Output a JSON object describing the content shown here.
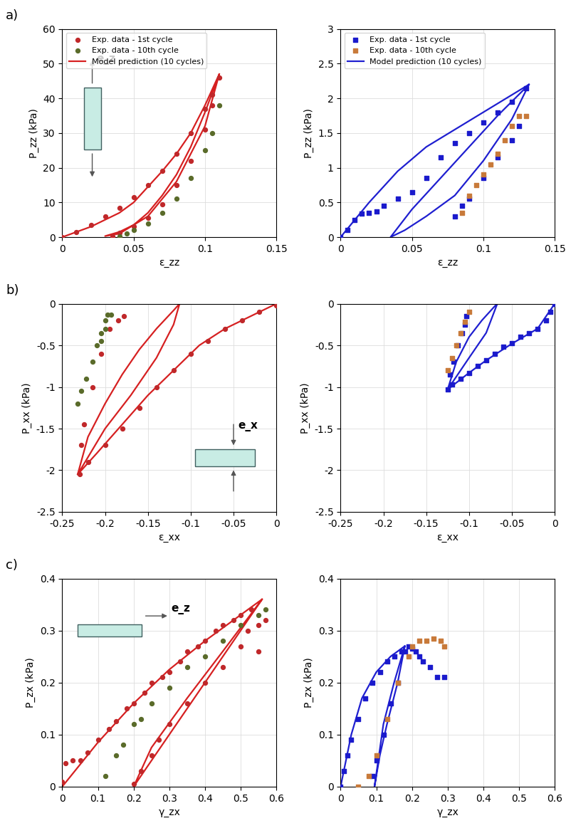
{
  "chart_data": [
    {
      "type": "scatter",
      "x_label": "ε_zz",
      "y_label": "P_zz (kPa)",
      "xlim": [
        0,
        0.15
      ],
      "xticks": [
        0,
        0.05,
        0.1,
        0.15
      ],
      "ylim": [
        0,
        60
      ],
      "yticks": [
        0,
        10,
        20,
        30,
        40,
        50,
        60
      ],
      "grid": true,
      "legend": "upper left",
      "annotations": [
        "a)",
        "e_z"
      ],
      "series": [
        {
          "name": "Exp. data - 1st cycle",
          "type": "scatter",
          "marker": "o",
          "color": "#c0282a",
          "x": [
            0,
            0.01,
            0.02,
            0.03,
            0.04,
            0.05,
            0.06,
            0.07,
            0.08,
            0.09,
            0.1,
            0.105,
            0.11,
            0.105,
            0.1,
            0.09,
            0.08,
            0.07,
            0.06,
            0.05,
            0.04,
            0.035
          ],
          "values": [
            0,
            1.5,
            3.5,
            6,
            8.5,
            11.5,
            15,
            19,
            24,
            30,
            37,
            41,
            46,
            38,
            31,
            22,
            15,
            9.5,
            5.5,
            3,
            1.2,
            0.3
          ]
        },
        {
          "name": "Exp. data - 10th cycle",
          "type": "scatter",
          "marker": "o",
          "color": "#5a6b2a",
          "x": [
            0.04,
            0.045,
            0.05,
            0.06,
            0.07,
            0.08,
            0.09,
            0.1,
            0.105,
            0.11
          ],
          "values": [
            0.3,
            1,
            2,
            4,
            7,
            11,
            17,
            25,
            30,
            38
          ]
        },
        {
          "name": "Model prediction (10 cycles)",
          "type": "line",
          "line_style": "solid",
          "color": "#d62021",
          "x": [
            0,
            0.02,
            0.04,
            0.05,
            0.06,
            0.07,
            0.08,
            0.09,
            0.1,
            0.11,
            0.1,
            0.09,
            0.08,
            0.07,
            0.06,
            0.05,
            0.04,
            0.03,
            0.04,
            0.06,
            0.08,
            0.1,
            0.11
          ],
          "values": [
            0,
            3,
            7,
            10,
            14.5,
            19,
            24,
            30,
            38,
            47,
            36,
            26,
            18,
            12,
            7,
            3.5,
            1.5,
            0.3,
            1,
            6,
            16,
            32,
            47
          ]
        }
      ]
    },
    {
      "type": "scatter",
      "x_label": "ε_zz",
      "y_label": "P_zz (kPa)",
      "xlim": [
        0,
        0.15
      ],
      "xticks": [
        0,
        0.05,
        0.1,
        0.15
      ],
      "ylim": [
        0,
        3
      ],
      "yticks": [
        0,
        0.5,
        1,
        1.5,
        2,
        2.5,
        3
      ],
      "grid": true,
      "legend": "upper left",
      "series": [
        {
          "name": "Exp. data - 1st cycle",
          "type": "scatter",
          "marker": "s",
          "color": "#1a1acc",
          "x": [
            0,
            0.005,
            0.01,
            0.015,
            0.02,
            0.025,
            0.03,
            0.04,
            0.05,
            0.06,
            0.07,
            0.08,
            0.09,
            0.1,
            0.11,
            0.12,
            0.13,
            0.125,
            0.12,
            0.11,
            0.1,
            0.09,
            0.085,
            0.08
          ],
          "values": [
            0,
            0.1,
            0.25,
            0.34,
            0.35,
            0.37,
            0.45,
            0.55,
            0.65,
            0.85,
            1.15,
            1.35,
            1.5,
            1.65,
            1.8,
            1.95,
            2.15,
            1.6,
            1.4,
            1.15,
            0.85,
            0.55,
            0.45,
            0.3
          ]
        },
        {
          "name": "Exp. data - 10th cycle",
          "type": "scatter",
          "marker": "s",
          "color": "#c87a3a",
          "x": [
            0.085,
            0.09,
            0.095,
            0.1,
            0.105,
            0.11,
            0.115,
            0.12,
            0.125,
            0.13
          ],
          "values": [
            0.35,
            0.6,
            0.75,
            0.9,
            1.05,
            1.2,
            1.4,
            1.6,
            1.75,
            1.75
          ]
        },
        {
          "name": "Model prediction (10 cycles)",
          "type": "line",
          "line_style": "solid",
          "color": "#1f1fd0",
          "x": [
            0,
            0.02,
            0.04,
            0.06,
            0.08,
            0.1,
            0.12,
            0.132,
            0.12,
            0.1,
            0.08,
            0.06,
            0.045,
            0.035,
            0.05,
            0.07,
            0.09,
            0.11,
            0.132
          ],
          "values": [
            0,
            0.5,
            0.95,
            1.3,
            1.55,
            1.8,
            2.05,
            2.2,
            1.7,
            1.1,
            0.6,
            0.3,
            0.1,
            0,
            0.4,
            0.85,
            1.3,
            1.75,
            2.2
          ]
        }
      ]
    },
    {
      "type": "scatter",
      "x_label": "ε_xx",
      "y_label": "P_xx (kPa)",
      "xlim": [
        -0.25,
        0
      ],
      "xticks": [
        -0.25,
        -0.2,
        -0.15,
        -0.1,
        -0.05,
        0
      ],
      "ylim": [
        -2.5,
        0
      ],
      "yticks": [
        -2.5,
        -2,
        -1.5,
        -1,
        -0.5,
        0
      ],
      "grid": true,
      "annotations": [
        "b)",
        "e_x"
      ],
      "series": [
        {
          "type": "scatter",
          "marker": "o",
          "color": "#c0282a",
          "x": [
            0,
            -0.02,
            -0.04,
            -0.06,
            -0.08,
            -0.1,
            -0.12,
            -0.14,
            -0.16,
            -0.18,
            -0.2,
            -0.22,
            -0.23,
            -0.228,
            -0.225,
            -0.215,
            -0.205,
            -0.195,
            -0.185,
            -0.178
          ],
          "values": [
            -0.02,
            -0.1,
            -0.2,
            -0.3,
            -0.45,
            -0.6,
            -0.8,
            -1.0,
            -1.25,
            -1.5,
            -1.7,
            -1.9,
            -2.05,
            -1.7,
            -1.45,
            -1.0,
            -0.6,
            -0.3,
            -0.2,
            -0.15
          ]
        },
        {
          "type": "scatter",
          "marker": "o",
          "color": "#5a6b2a",
          "x": [
            -0.232,
            -0.228,
            -0.222,
            -0.215,
            -0.21,
            -0.205,
            -0.2,
            -0.197,
            -0.205,
            -0.2,
            -0.193
          ],
          "values": [
            -1.2,
            -1.05,
            -0.9,
            -0.7,
            -0.5,
            -0.35,
            -0.2,
            -0.13,
            -0.45,
            -0.3,
            -0.13
          ]
        },
        {
          "type": "line",
          "line_style": "solid",
          "color": "#d62021",
          "x": [
            0,
            -0.03,
            -0.06,
            -0.09,
            -0.12,
            -0.15,
            -0.18,
            -0.21,
            -0.232,
            -0.22,
            -0.2,
            -0.18,
            -0.16,
            -0.14,
            -0.12,
            -0.113,
            -0.12,
            -0.14,
            -0.17,
            -0.2,
            -0.232
          ],
          "values": [
            0,
            -0.15,
            -0.3,
            -0.5,
            -0.8,
            -1.1,
            -1.45,
            -1.8,
            -2.05,
            -1.6,
            -1.2,
            -0.85,
            -0.55,
            -0.3,
            -0.08,
            0,
            -0.25,
            -0.65,
            -1.1,
            -1.5,
            -2.05
          ]
        }
      ]
    },
    {
      "type": "scatter",
      "x_label": "ε_xx",
      "y_label": "P_xx (kPa)",
      "xlim": [
        -0.25,
        0
      ],
      "xticks": [
        -0.25,
        -0.2,
        -0.15,
        -0.1,
        -0.05,
        0
      ],
      "ylim": [
        -2.5,
        0
      ],
      "yticks": [
        -2.5,
        -2,
        -1.5,
        -1,
        -0.5,
        0
      ],
      "grid": true,
      "series": [
        {
          "type": "scatter",
          "marker": "s",
          "color": "#1a1acc",
          "x": [
            0,
            -0.005,
            -0.01,
            -0.02,
            -0.03,
            -0.04,
            -0.05,
            -0.06,
            -0.07,
            -0.08,
            -0.09,
            -0.1,
            -0.11,
            -0.12,
            -0.125,
            -0.122,
            -0.118,
            -0.113,
            -0.108,
            -0.105,
            -0.103
          ],
          "values": [
            0,
            -0.1,
            -0.2,
            -0.3,
            -0.35,
            -0.4,
            -0.47,
            -0.52,
            -0.6,
            -0.68,
            -0.75,
            -0.83,
            -0.9,
            -0.97,
            -1.03,
            -0.85,
            -0.7,
            -0.5,
            -0.35,
            -0.25,
            -0.15
          ]
        },
        {
          "type": "scatter",
          "marker": "s",
          "color": "#c87a3a",
          "x": [
            -0.125,
            -0.12,
            -0.115,
            -0.11,
            -0.105,
            -0.1
          ],
          "values": [
            -0.8,
            -0.65,
            -0.5,
            -0.35,
            -0.22,
            -0.1
          ]
        },
        {
          "type": "line",
          "line_style": "solid",
          "color": "#1f1fd0",
          "x": [
            0,
            -0.02,
            -0.05,
            -0.08,
            -0.1,
            -0.125,
            -0.115,
            -0.1,
            -0.085,
            -0.07,
            -0.067,
            -0.08,
            -0.1,
            -0.125
          ],
          "values": [
            0,
            -0.3,
            -0.48,
            -0.68,
            -0.83,
            -1.03,
            -0.7,
            -0.4,
            -0.2,
            -0.03,
            0,
            -0.35,
            -0.65,
            -1.03
          ]
        }
      ]
    },
    {
      "type": "scatter",
      "x_label": "γ_zx",
      "y_label": "P_zx (kPa)",
      "xlim": [
        0,
        0.6
      ],
      "xticks": [
        0,
        0.1,
        0.2,
        0.3,
        0.4,
        0.5,
        0.6
      ],
      "ylim": [
        0,
        0.4
      ],
      "yticks": [
        0,
        0.1,
        0.2,
        0.3,
        0.4
      ],
      "grid": true,
      "annotations": [
        "c)",
        "e_z"
      ],
      "series": [
        {
          "type": "scatter",
          "marker": "o",
          "color": "#c0282a",
          "x": [
            0,
            0.01,
            0.03,
            0.05,
            0.07,
            0.1,
            0.13,
            0.15,
            0.18,
            0.2,
            0.23,
            0.25,
            0.28,
            0.3,
            0.33,
            0.35,
            0.38,
            0.4,
            0.43,
            0.45,
            0.48,
            0.5,
            0.53,
            0.55,
            0.57,
            0.55,
            0.52,
            0.5,
            0.45,
            0.4,
            0.35,
            0.3,
            0.27,
            0.25,
            0.22,
            0.2
          ],
          "values": [
            0.01,
            0.045,
            0.05,
            0.05,
            0.065,
            0.09,
            0.11,
            0.125,
            0.15,
            0.16,
            0.18,
            0.2,
            0.21,
            0.22,
            0.24,
            0.26,
            0.27,
            0.28,
            0.3,
            0.31,
            0.32,
            0.33,
            0.34,
            0.31,
            0.32,
            0.26,
            0.3,
            0.27,
            0.23,
            0.2,
            0.16,
            0.12,
            0.09,
            0.06,
            0.03,
            0.005
          ]
        },
        {
          "type": "scatter",
          "marker": "o",
          "color": "#5a6b2a",
          "x": [
            0.12,
            0.15,
            0.17,
            0.2,
            0.22,
            0.25,
            0.3,
            0.35,
            0.4,
            0.45,
            0.5,
            0.55,
            0.57
          ],
          "values": [
            0.02,
            0.06,
            0.08,
            0.12,
            0.13,
            0.16,
            0.19,
            0.23,
            0.25,
            0.28,
            0.31,
            0.33,
            0.34
          ]
        },
        {
          "type": "line",
          "line_style": "solid",
          "color": "#d62021",
          "x": [
            0,
            0.1,
            0.2,
            0.3,
            0.4,
            0.5,
            0.56,
            0.5,
            0.4,
            0.3,
            0.25,
            0.2,
            0.25,
            0.35,
            0.45,
            0.56
          ],
          "values": [
            0,
            0.085,
            0.16,
            0.225,
            0.28,
            0.33,
            0.36,
            0.3,
            0.2,
            0.1,
            0.05,
            0,
            0.075,
            0.17,
            0.26,
            0.36
          ]
        }
      ]
    },
    {
      "type": "scatter",
      "x_label": "γ_zx",
      "y_label": "P_zx (kPa)",
      "xlim": [
        0,
        0.6
      ],
      "xticks": [
        0,
        0.1,
        0.2,
        0.3,
        0.4,
        0.5,
        0.6
      ],
      "ylim": [
        0,
        0.4
      ],
      "yticks": [
        0,
        0.1,
        0.2,
        0.3,
        0.4
      ],
      "grid": true,
      "series": [
        {
          "type": "scatter",
          "marker": "s",
          "color": "#1a1acc",
          "x": [
            0,
            0.01,
            0.02,
            0.03,
            0.05,
            0.07,
            0.09,
            0.11,
            0.13,
            0.15,
            0.17,
            0.19,
            0.2,
            0.21,
            0.22,
            0.23,
            0.25,
            0.27,
            0.29,
            0.18,
            0.16,
            0.14,
            0.12,
            0.1,
            0.09
          ],
          "values": [
            0,
            0.03,
            0.06,
            0.09,
            0.13,
            0.17,
            0.2,
            0.22,
            0.24,
            0.25,
            0.26,
            0.27,
            0.265,
            0.26,
            0.25,
            0.24,
            0.23,
            0.21,
            0.21,
            0.26,
            0.2,
            0.16,
            0.1,
            0.05,
            0.02
          ]
        },
        {
          "type": "scatter",
          "marker": "s",
          "color": "#c87a3a",
          "x": [
            0.05,
            0.08,
            0.1,
            0.13,
            0.16,
            0.19,
            0.2,
            0.22,
            0.24,
            0.26,
            0.28,
            0.29
          ],
          "values": [
            0.0,
            0.02,
            0.06,
            0.13,
            0.2,
            0.25,
            0.27,
            0.28,
            0.28,
            0.285,
            0.28,
            0.27
          ]
        },
        {
          "type": "line",
          "line_style": "solid",
          "color": "#1f1fd0",
          "x": [
            0,
            0.03,
            0.06,
            0.1,
            0.14,
            0.18,
            0.16,
            0.13,
            0.11,
            0.095,
            0.12,
            0.15,
            0.18
          ],
          "values": [
            0,
            0.1,
            0.17,
            0.22,
            0.25,
            0.27,
            0.2,
            0.12,
            0.06,
            0,
            0.12,
            0.2,
            0.27
          ]
        }
      ]
    }
  ]
}
